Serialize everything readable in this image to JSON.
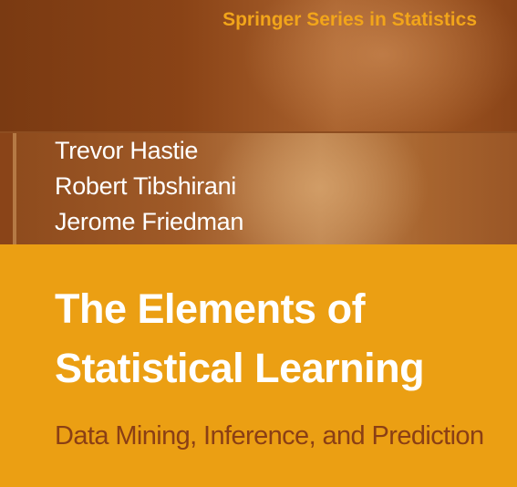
{
  "series": {
    "title": "Springer Series in Statistics"
  },
  "authors": [
    "Trevor Hastie",
    "Robert Tibshirani",
    "Jerome Friedman"
  ],
  "book": {
    "title_line_1": "The Elements of",
    "title_line_2": "Statistical Learning",
    "subtitle": "Data Mining, Inference, and Prediction"
  },
  "colors": {
    "orange": "#eb9f13",
    "brown": "#8a4418",
    "series_text": "#f2a51a",
    "subtitle_text": "#8a3f15"
  }
}
